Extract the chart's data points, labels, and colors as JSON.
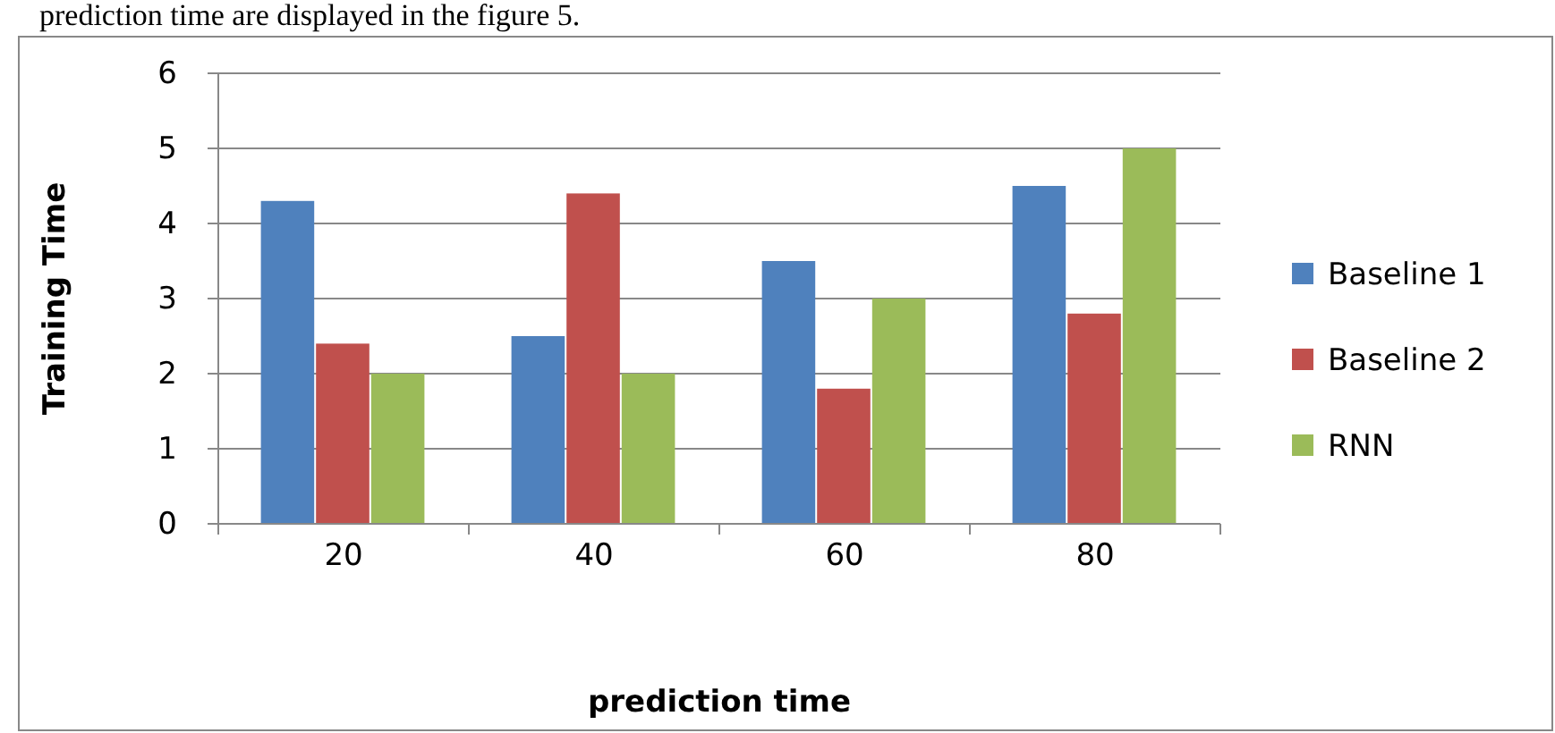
{
  "chart_data": {
    "type": "bar",
    "xlabel": "prediction time",
    "ylabel": "Training Time",
    "annotations": [
      "prediction time are displayed in the figure 5."
    ],
    "categories": [
      "20",
      "40",
      "60",
      "80"
    ],
    "series": [
      {
        "name": "Baseline 1",
        "color": "#4f81bd",
        "values": [
          4.3,
          2.5,
          3.5,
          4.5
        ]
      },
      {
        "name": "Baseline 2",
        "color": "#c0504d",
        "values": [
          2.4,
          4.4,
          1.8,
          2.8
        ]
      },
      {
        "name": "RNN",
        "color": "#9bbb59",
        "values": [
          2,
          2,
          3,
          5
        ]
      }
    ],
    "ylim": [
      0,
      6
    ],
    "yticks": [
      0,
      1,
      2,
      3,
      4,
      5,
      6
    ],
    "grid": "y",
    "legend": "right"
  }
}
